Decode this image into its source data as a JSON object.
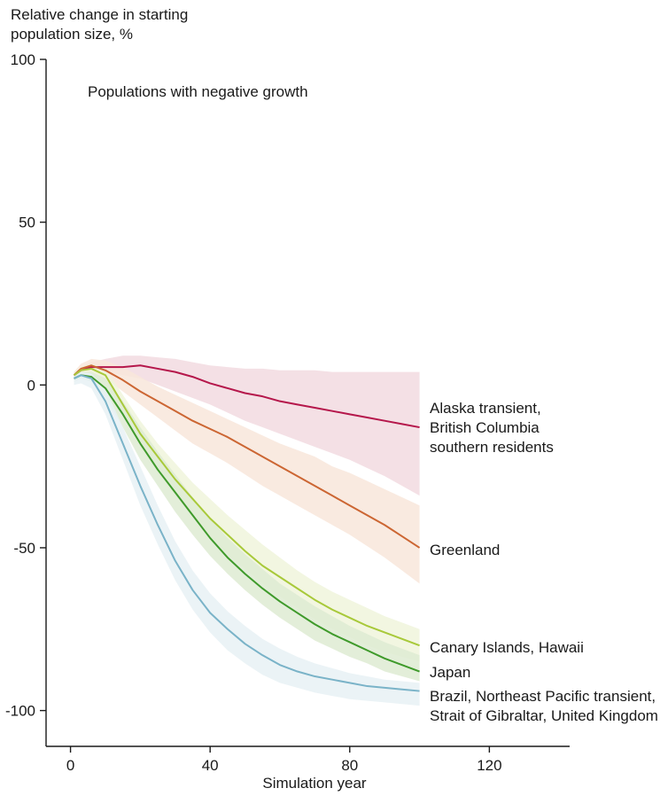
{
  "chart_data": {
    "type": "line",
    "title": "",
    "subtitle": "Populations with negative growth",
    "ylabel": "Relative change in starting\npopulation size, %",
    "xlabel": "Simulation year",
    "xlim": [
      -7,
      143
    ],
    "ylim": [
      -111,
      100
    ],
    "x_ticks": [
      0,
      40,
      80,
      120
    ],
    "y_ticks": [
      100,
      50,
      0,
      -50,
      -100
    ],
    "grid": false,
    "series": [
      {
        "name": "Alaska transient,\nBritish Columbia\nsouthern residents",
        "color": "#b5174b",
        "band_color": "#f2dbe1",
        "x": [
          1,
          3,
          6,
          10,
          15,
          20,
          25,
          30,
          35,
          40,
          45,
          50,
          55,
          60,
          65,
          70,
          75,
          80,
          85,
          90,
          95,
          100
        ],
        "y": [
          3,
          4.5,
          5.5,
          5.5,
          5.5,
          6,
          5,
          4,
          2.5,
          0.5,
          -1,
          -2.5,
          -3.5,
          -5,
          -6,
          -7,
          -8,
          -9,
          -10,
          -11,
          -12,
          -13
        ],
        "lower": [
          2,
          3.5,
          4.5,
          4,
          3,
          2,
          0,
          -2,
          -4,
          -6,
          -8.5,
          -11,
          -13,
          -15,
          -17,
          -19,
          -21,
          -23,
          -25.5,
          -28,
          -31,
          -34
        ],
        "upper": [
          4,
          5.5,
          7,
          8,
          9,
          9,
          8.5,
          8,
          7,
          6,
          5.5,
          5,
          5,
          4.5,
          4.5,
          4.5,
          4,
          4,
          4,
          4,
          4,
          4
        ]
      },
      {
        "name": "Greenland",
        "color": "#cc6633",
        "band_color": "#f8e6da",
        "x": [
          1,
          3,
          6,
          10,
          15,
          20,
          25,
          30,
          35,
          40,
          45,
          50,
          55,
          60,
          65,
          70,
          75,
          80,
          85,
          90,
          95,
          100
        ],
        "y": [
          3,
          5,
          6,
          4.5,
          1.5,
          -2,
          -5,
          -8,
          -11,
          -13.5,
          -16,
          -19,
          -22,
          -25,
          -28,
          -31,
          -34,
          -37,
          -40,
          -43,
          -46.5,
          -50
        ],
        "lower": [
          2,
          3.5,
          4,
          2,
          -2,
          -6,
          -10,
          -14,
          -18,
          -21,
          -24,
          -27.5,
          -31,
          -34,
          -37,
          -40,
          -43,
          -46,
          -49.5,
          -53,
          -57,
          -61
        ],
        "upper": [
          4,
          6.5,
          8,
          7.5,
          5.5,
          2.5,
          -0.5,
          -3,
          -5.5,
          -8,
          -10.5,
          -13,
          -15.5,
          -18,
          -20,
          -22,
          -25,
          -27,
          -29.5,
          -32,
          -34.5,
          -37
        ]
      },
      {
        "name": "Canary Islands, Hawaii",
        "color": "#a8c93a",
        "band_color": "#f0f4dc",
        "x": [
          1,
          3,
          6,
          10,
          15,
          20,
          25,
          30,
          35,
          40,
          45,
          50,
          55,
          60,
          65,
          70,
          75,
          80,
          85,
          90,
          95,
          100
        ],
        "y": [
          3,
          4.5,
          5,
          3,
          -6,
          -15,
          -22,
          -29,
          -35,
          -41,
          -46,
          -51,
          -55.5,
          -59,
          -62.5,
          -66,
          -69,
          -71.5,
          -74,
          -76,
          -78,
          -80
        ],
        "lower": [
          2,
          3.5,
          4,
          1.5,
          -9,
          -19,
          -27,
          -34,
          -40.5,
          -46.5,
          -52,
          -56.5,
          -61,
          -65,
          -68.5,
          -72,
          -75,
          -77.5,
          -80,
          -82,
          -83.5,
          -85
        ],
        "upper": [
          4,
          5.5,
          6.5,
          5,
          -3,
          -11,
          -18,
          -24,
          -30,
          -35,
          -40,
          -44.5,
          -49,
          -53,
          -57,
          -60.5,
          -63.5,
          -66,
          -68.5,
          -71,
          -73,
          -75
        ]
      },
      {
        "name": "Japan",
        "color": "#3f9a2b",
        "band_color": "#deebd2",
        "x": [
          1,
          3,
          6,
          10,
          15,
          20,
          25,
          30,
          35,
          40,
          45,
          50,
          55,
          60,
          65,
          70,
          75,
          80,
          85,
          90,
          95,
          100
        ],
        "y": [
          2,
          3,
          2.5,
          -1,
          -9,
          -18,
          -26,
          -33,
          -40,
          -47,
          -53,
          -58,
          -62.5,
          -66.5,
          -70,
          -73.5,
          -76.5,
          -79,
          -81.5,
          -84,
          -86,
          -88
        ],
        "lower": [
          1,
          2,
          1,
          -4,
          -13,
          -23,
          -31,
          -39,
          -46,
          -52.5,
          -58,
          -63,
          -67.5,
          -71.5,
          -75,
          -78.5,
          -81,
          -83.5,
          -85.5,
          -88,
          -89.5,
          -91
        ],
        "upper": [
          3,
          4,
          4,
          2,
          -5,
          -13,
          -20.5,
          -27.5,
          -34.5,
          -41,
          -47,
          -52,
          -56.5,
          -61,
          -64.5,
          -68,
          -71,
          -74,
          -76.5,
          -79,
          -81,
          -83
        ]
      },
      {
        "name": "Brazil, Northeast Pacific transient,\nStrait of Gibraltar, United Kingdom",
        "color": "#7ab3c8",
        "band_color": "#e7f1f5",
        "x": [
          1,
          3,
          6,
          10,
          15,
          20,
          25,
          30,
          35,
          40,
          45,
          50,
          55,
          60,
          65,
          70,
          75,
          80,
          85,
          90,
          95,
          100
        ],
        "y": [
          2,
          3,
          2,
          -5,
          -18,
          -31,
          -43,
          -54,
          -63,
          -70,
          -75,
          -79.5,
          -83,
          -86,
          -88,
          -89.5,
          -90.5,
          -91.5,
          -92.5,
          -93,
          -93.5,
          -94
        ],
        "lower": [
          0,
          0.5,
          -1,
          -9,
          -23,
          -37,
          -49,
          -60,
          -69,
          -76,
          -81.5,
          -85.5,
          -89,
          -91.5,
          -93,
          -94.5,
          -95.5,
          -96.5,
          -97,
          -97.5,
          -98,
          -98.5
        ],
        "upper": [
          3,
          4,
          3.5,
          -1,
          -13,
          -25,
          -37,
          -48,
          -57,
          -64,
          -69.5,
          -74,
          -78,
          -81,
          -83.5,
          -85.5,
          -87,
          -88.5,
          -89.5,
          -90.5,
          -91,
          -91.5
        ]
      }
    ]
  }
}
